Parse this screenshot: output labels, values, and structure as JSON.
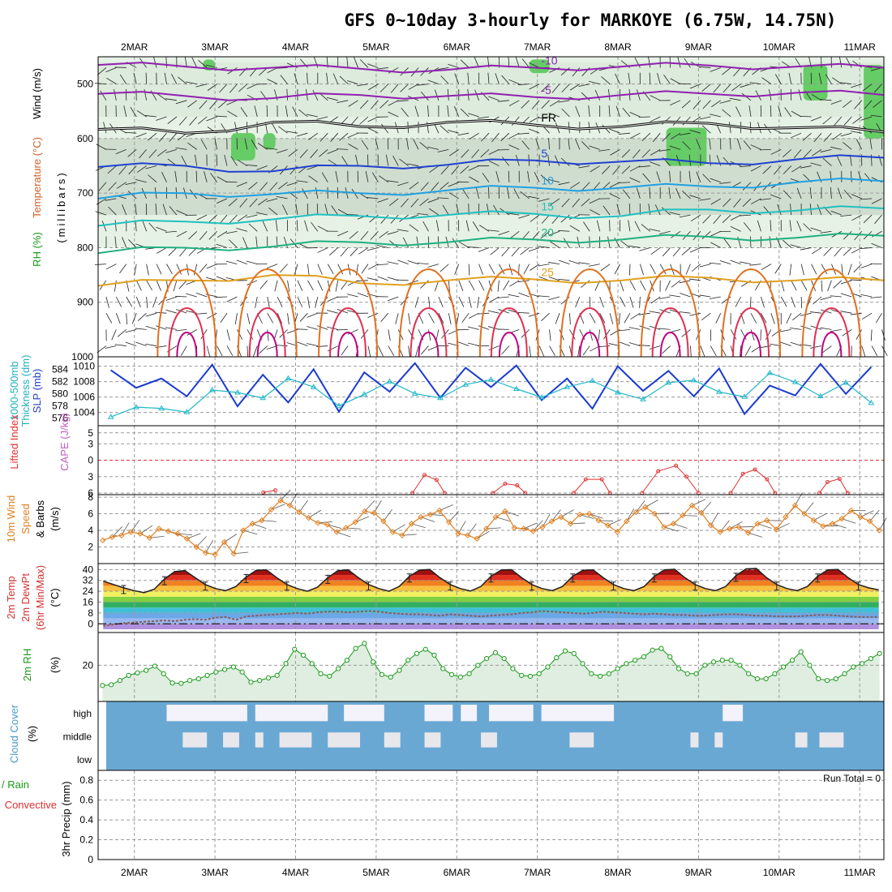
{
  "title": "GFS 0~10day 3-hourly for MARKOYE (6.75W, 14.75N)",
  "dates": [
    "2MAR",
    "3MAR",
    "4MAR",
    "5MAR",
    "6MAR",
    "7MAR",
    "8MAR",
    "9MAR",
    "10MAR",
    "11MAR"
  ],
  "run_total_label": "Run Total = 0",
  "panel_labels": {
    "upper": [
      {
        "text": "RH (%)",
        "color": "#1a9a1a"
      },
      {
        "text": "Temperature (°C)",
        "color": "#d0602a"
      },
      {
        "text": "Wind (m/s)",
        "color": "#000000"
      }
    ],
    "upper_units": "(millibars)",
    "thickness_slp": [
      {
        "text": "1000-500mb",
        "color": "#20b0c0"
      },
      {
        "text": "Thickness (dm)",
        "color": "#20b0c0"
      },
      {
        "text": "SLP (mb)",
        "color": "#2040c0"
      }
    ],
    "cape_li": [
      {
        "text": "Lifted Index",
        "color": "#e03030"
      },
      {
        "text": "CAPE (J/kg)",
        "color": "#c060c0"
      }
    ],
    "wind10": [
      {
        "text": "10m Wind",
        "color": "#e08020"
      },
      {
        "text": "Speed",
        "color": "#e08020"
      },
      {
        "text": "& Barbs",
        "color": "#000000"
      },
      {
        "text": "(m/s)",
        "color": "#000000"
      }
    ],
    "temp2m": [
      {
        "text": "2m Temp",
        "color": "#d03030"
      },
      {
        "text": "2m DewPt",
        "color": "#d03030"
      },
      {
        "text": "(6hr Min/Max)",
        "color": "#d03030"
      },
      {
        "text": "(°C)",
        "color": "#000000"
      }
    ],
    "rh2m": [
      {
        "text": "2m RH",
        "color": "#1a9a1a"
      },
      {
        "text": "(%)",
        "color": "#000000"
      }
    ],
    "cloud": [
      {
        "text": "Cloud Cover",
        "color": "#4a9ac8"
      },
      {
        "text": "(%)",
        "color": "#000000"
      }
    ],
    "precip": [
      {
        "text": "Total / Rain",
        "color": "#1a9a1a"
      },
      {
        "text": "Convective",
        "color": "#e03030"
      },
      {
        "text": "3hr Precip (mm)",
        "color": "#000000"
      }
    ]
  },
  "chart_data": [
    {
      "type": "heatmap",
      "panel": "upper",
      "y_ticks": [
        500,
        600,
        700,
        800,
        900,
        1000
      ],
      "ylim": [
        1000,
        450
      ],
      "temperature_contours": [
        {
          "label": "-10",
          "value": -10,
          "color": "#9020b0",
          "p": [
            465,
            468,
            470,
            472,
            474,
            470,
            468,
            466,
            468,
            470
          ]
        },
        {
          "label": "-5",
          "value": -5,
          "color": "#9020b0",
          "p": [
            518,
            522,
            526,
            520,
            522,
            524,
            520,
            518,
            516,
            520
          ]
        },
        {
          "label": "FR",
          "value": 0,
          "color": "#000000",
          "p": [
            583,
            590,
            570,
            578,
            570,
            575,
            578,
            572,
            580,
            588
          ]
        },
        {
          "label": "5",
          "value": 5,
          "color": "#2040d0",
          "p": [
            652,
            650,
            660,
            650,
            648,
            640,
            642,
            645,
            638,
            635
          ]
        },
        {
          "label": "10",
          "value": 10,
          "color": "#20a0e0",
          "p": [
            710,
            700,
            702,
            700,
            695,
            690,
            690,
            688,
            680,
            678
          ]
        },
        {
          "label": "15",
          "value": 15,
          "color": "#20c0c0",
          "p": [
            760,
            752,
            748,
            742,
            740,
            738,
            742,
            730,
            732,
            728
          ]
        },
        {
          "label": "20",
          "value": 20,
          "color": "#20b080",
          "p": [
            810,
            800,
            798,
            790,
            790,
            785,
            785,
            780,
            782,
            778
          ]
        },
        {
          "label": "25",
          "value": 25,
          "color": "#e0a020",
          "p": [
            870,
            860,
            850,
            865,
            860,
            858,
            860,
            855,
            860,
            860
          ]
        }
      ]
    },
    {
      "type": "line",
      "panel": "thickness_slp",
      "slp_ticks": [
        1004,
        1006,
        1008,
        1010
      ],
      "thickness_ticks": [
        576,
        578,
        580,
        582,
        584
      ],
      "series": [
        {
          "name": "SLP (mb)",
          "color": "#1a3ad0",
          "values": [
            1009.5,
            1007.2,
            1008.4,
            1006.1,
            1010.2,
            1004.8,
            1008.9,
            1005.3,
            1009.6,
            1004.1,
            1009.2,
            1006.7,
            1010.4,
            1005.9,
            1009.8,
            1007.3,
            1010.1,
            1005.6,
            1008.4,
            1004.5,
            1010.0,
            1006.8,
            1009.4,
            1006.1,
            1009.7,
            1003.8,
            1007.5,
            1006.2,
            1010.3,
            1006.4,
            1009.9
          ]
        },
        {
          "name": "1000-500mb Thickness (dm)",
          "color": "#20b8c8",
          "values": [
            576.2,
            577.8,
            577.6,
            577.0,
            580.6,
            580.2,
            579.3,
            582.5,
            581.1,
            578.0,
            579.9,
            582.0,
            580.0,
            579.3,
            581.5,
            582.3,
            580.8,
            579.4,
            581.1,
            582.1,
            580.2,
            579.1,
            581.8,
            582.2,
            580.3,
            579.5,
            583.4,
            581.9,
            579.6,
            581.8,
            578.5
          ]
        }
      ]
    },
    {
      "type": "line",
      "panel": "cape_li",
      "y_ticks": [
        -5,
        -3,
        0,
        3,
        6
      ],
      "ylim": [
        6,
        -6
      ],
      "series": [
        {
          "name": "Lifted Index",
          "color": "#e03030",
          "segments": [
            [
              [
                3.6,
                5.9
              ],
              [
                3.75,
                5.5
              ]
            ],
            [
              [
                5.45,
                6.0
              ],
              [
                5.6,
                2.7
              ],
              [
                5.75,
                3.6
              ],
              [
                5.85,
                6.0
              ]
            ],
            [
              [
                6.45,
                6.0
              ],
              [
                6.6,
                4.3
              ],
              [
                6.75,
                4.6
              ],
              [
                6.85,
                6.0
              ]
            ],
            [
              [
                7.45,
                6.0
              ],
              [
                7.6,
                3.5
              ],
              [
                7.8,
                3.5
              ],
              [
                7.9,
                6.0
              ]
            ],
            [
              [
                8.3,
                6.0
              ],
              [
                8.5,
                2.0
              ],
              [
                8.72,
                1.0
              ],
              [
                8.85,
                3.0
              ],
              [
                9.0,
                6.0
              ]
            ],
            [
              [
                9.4,
                6.0
              ],
              [
                9.55,
                2.5
              ],
              [
                9.7,
                1.7
              ],
              [
                9.85,
                3.5
              ],
              [
                9.95,
                6.0
              ]
            ],
            [
              [
                10.5,
                6.0
              ],
              [
                10.6,
                4.0
              ],
              [
                10.75,
                3.4
              ],
              [
                10.85,
                6.0
              ]
            ]
          ]
        }
      ]
    },
    {
      "type": "line",
      "panel": "wind10",
      "y_ticks": [
        2,
        4,
        6,
        8
      ],
      "ylim": [
        0,
        8
      ],
      "series": [
        {
          "name": "10m Wind Speed",
          "color": "#e08020",
          "values": [
            2.8,
            3.2,
            3.4,
            3.8,
            3.6,
            3.1,
            4.2,
            3.9,
            3.6,
            3.0,
            2.0,
            1.3,
            1.1,
            2.6,
            1.2,
            4.0,
            4.8,
            5.2,
            6.5,
            7.6,
            7.0,
            6.2,
            5.5,
            4.9,
            4.7,
            3.8,
            4.3,
            5.0,
            6.3,
            6.1,
            5.1,
            3.8,
            3.4,
            4.8,
            5.6,
            5.9,
            6.4,
            5.0,
            3.6,
            3.4,
            3.0,
            4.2,
            5.6,
            6.3,
            4.3,
            4.2,
            3.9,
            4.4,
            5.1,
            5.6,
            4.8,
            5.9,
            6.0,
            5.2,
            4.6,
            3.8,
            5.1,
            6.2,
            6.8,
            6.0,
            4.4,
            4.8,
            5.8,
            7.0,
            6.1,
            4.6,
            3.8,
            4.2,
            4.4,
            3.7,
            4.8,
            5.2,
            4.1,
            5.6,
            7.0,
            6.0,
            5.2,
            4.5,
            4.8,
            5.4,
            6.4,
            5.6,
            5.1,
            4.0
          ]
        }
      ]
    },
    {
      "type": "area",
      "panel": "temp2m",
      "y_ticks": [
        0,
        8,
        16,
        24,
        32,
        40
      ],
      "ylim": [
        -4,
        42
      ],
      "series": [
        {
          "name": "2m Temp",
          "color": "#202020",
          "values": [
            31.5,
            29.0,
            26.5,
            24.5,
            23.0,
            25.5,
            33.0,
            38.5,
            39.2,
            34.0,
            29.0,
            26.0,
            24.5,
            27.5,
            34.5,
            39.5,
            39.8,
            34.0,
            29.0,
            26.0,
            24.0,
            27.0,
            34.0,
            39.2,
            39.8,
            34.0,
            29.0,
            26.0,
            24.0,
            27.5,
            35.0,
            39.6,
            40.0,
            34.0,
            29.0,
            26.0,
            24.2,
            27.5,
            35.0,
            39.7,
            39.9,
            34.0,
            29.0,
            26.0,
            24.5,
            27.5,
            35.0,
            39.5,
            39.8,
            34.0,
            29.0,
            26.0,
            24.5,
            27.5,
            35.0,
            39.8,
            40.2,
            34.0,
            29.0,
            26.0,
            24.5,
            27.5,
            35.5,
            40.5,
            40.8,
            34.0,
            29.0,
            26.0,
            24.5,
            27.5,
            35.0,
            39.8,
            40.0,
            34.0,
            29.0,
            26.5,
            25.0
          ]
        },
        {
          "name": "2m DewPt",
          "color": "#8b5a5a",
          "values": [
            -1.5,
            -0.5,
            0.5,
            1.0,
            1.5,
            2.0,
            2.5,
            2.0,
            3.0,
            3.5,
            3.0,
            4.5,
            5.0,
            3.0,
            5.5,
            6.0,
            6.5,
            7.0,
            7.5,
            8.0,
            7.5,
            8.5,
            9.0,
            9.0,
            8.5,
            9.0,
            9.5,
            9.0,
            8.0,
            7.5,
            7.0,
            7.0,
            6.5,
            6.0,
            7.0,
            6.5,
            6.0,
            5.5,
            6.0,
            6.5,
            7.0,
            8.0,
            8.5,
            9.5,
            9.0,
            8.5,
            8.0,
            7.5,
            8.0,
            9.0,
            8.5,
            8.0,
            7.5,
            7.0,
            7.5,
            7.0,
            6.5,
            6.5,
            6.0,
            6.0,
            6.5,
            7.0,
            7.0,
            6.5,
            6.0,
            6.0,
            5.5,
            5.5,
            5.5,
            6.0,
            6.5,
            6.5,
            6.0,
            5.5,
            5.0,
            5.0,
            5.0
          ]
        }
      ]
    },
    {
      "type": "area",
      "panel": "rh2m",
      "y_ticks": [
        20
      ],
      "ylim": [
        0,
        38
      ],
      "series": [
        {
          "name": "2m RH",
          "color": "#1a9a1a",
          "values": [
            8,
            8.5,
            11,
            14,
            15.5,
            17,
            19.5,
            15,
            9.5,
            9.3,
            11,
            12,
            14,
            16,
            17.5,
            19,
            16,
            10,
            11,
            12.5,
            14,
            21,
            29.5,
            26,
            21,
            15,
            13.5,
            18,
            23,
            30,
            33,
            22,
            14.5,
            13,
            17,
            23,
            27,
            29.5,
            26,
            18,
            14.5,
            13,
            15,
            20,
            24,
            27.5,
            24,
            18,
            14,
            13.5,
            15,
            19,
            24.5,
            28.5,
            27,
            21,
            15,
            13.5,
            15,
            18,
            21,
            23,
            25,
            29,
            30,
            25,
            18,
            15,
            15,
            20,
            22,
            23,
            23,
            20,
            15,
            12,
            12,
            15,
            19,
            23,
            28,
            20,
            12,
            11,
            12,
            15,
            19,
            21,
            24,
            27
          ]
        }
      ]
    },
    {
      "type": "heatmap",
      "panel": "cloud",
      "y_ticks": [
        "high",
        "middle",
        "low"
      ],
      "series": [
        {
          "name": "high",
          "clear_spans": [
            [
              2.4,
              3.4
            ],
            [
              3.5,
              4.4
            ],
            [
              4.6,
              5.1
            ],
            [
              5.6,
              5.95
            ],
            [
              6.05,
              6.25
            ],
            [
              6.4,
              6.95
            ],
            [
              7.05,
              7.95
            ],
            [
              9.3,
              9.55
            ]
          ]
        },
        {
          "name": "middle",
          "clear_spans": [
            [
              2.6,
              2.9
            ],
            [
              3.1,
              3.3
            ],
            [
              3.5,
              3.6
            ],
            [
              3.8,
              4.2
            ],
            [
              4.4,
              4.8
            ],
            [
              5.1,
              5.3
            ],
            [
              5.6,
              5.8
            ],
            [
              6.3,
              6.5
            ],
            [
              7.4,
              7.7
            ],
            [
              8.9,
              9.0
            ],
            [
              9.2,
              9.3
            ],
            [
              10.2,
              10.35
            ],
            [
              10.5,
              10.8
            ]
          ]
        },
        {
          "name": "low",
          "clear_spans": []
        }
      ]
    },
    {
      "type": "bar",
      "panel": "precip",
      "y_ticks": [
        0,
        0.2,
        0.4,
        0.6,
        0.8
      ],
      "ylim": [
        0,
        0.9
      ],
      "series": [
        {
          "name": "Total / Rain",
          "color": "#1a9a1a",
          "values": []
        },
        {
          "name": "Convective",
          "color": "#e03030",
          "values": []
        }
      ]
    }
  ]
}
